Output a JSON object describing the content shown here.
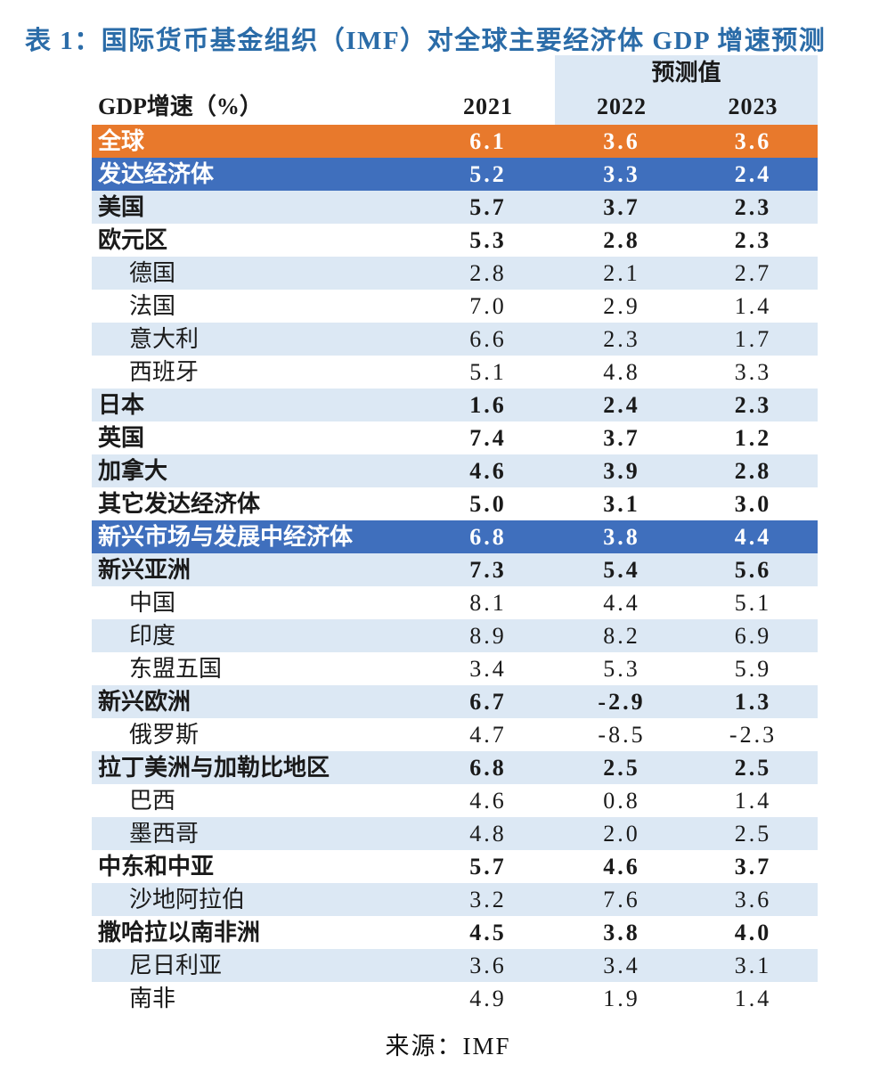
{
  "title": "表 1：国际货币基金组织（IMF）对全球主要经济体 GDP 增速预测",
  "source": "来源：IMF",
  "palette": {
    "title_blue": "#2B6CA8",
    "orange_row": "#E8792C",
    "dark_blue_row": "#3F6FBD",
    "light_blue_row": "#DCE8F4",
    "white_row": "#FFFFFF",
    "text_on_color": "#FFFFFF",
    "text_dark": "#1A1A1A"
  },
  "table": {
    "header": {
      "forecast_label": "预测值",
      "col_label": "GDP增速（%）",
      "years": [
        "2021",
        "2022",
        "2023"
      ]
    },
    "rows": [
      {
        "label": "全球",
        "values": [
          "6.1",
          "3.6",
          "3.6"
        ],
        "bg": "orange",
        "bold": true,
        "indent": false
      },
      {
        "label": "发达经济体",
        "values": [
          "5.2",
          "3.3",
          "2.4"
        ],
        "bg": "blue",
        "bold": true,
        "indent": false
      },
      {
        "label": "美国",
        "values": [
          "5.7",
          "3.7",
          "2.3"
        ],
        "bg": "light",
        "bold": true,
        "indent": false
      },
      {
        "label": "欧元区",
        "values": [
          "5.3",
          "2.8",
          "2.3"
        ],
        "bg": "white",
        "bold": true,
        "indent": false
      },
      {
        "label": "德国",
        "values": [
          "2.8",
          "2.1",
          "2.7"
        ],
        "bg": "light",
        "bold": false,
        "indent": true
      },
      {
        "label": "法国",
        "values": [
          "7.0",
          "2.9",
          "1.4"
        ],
        "bg": "white",
        "bold": false,
        "indent": true
      },
      {
        "label": "意大利",
        "values": [
          "6.6",
          "2.3",
          "1.7"
        ],
        "bg": "light",
        "bold": false,
        "indent": true
      },
      {
        "label": "西班牙",
        "values": [
          "5.1",
          "4.8",
          "3.3"
        ],
        "bg": "white",
        "bold": false,
        "indent": true
      },
      {
        "label": "日本",
        "values": [
          "1.6",
          "2.4",
          "2.3"
        ],
        "bg": "light",
        "bold": true,
        "indent": false
      },
      {
        "label": "英国",
        "values": [
          "7.4",
          "3.7",
          "1.2"
        ],
        "bg": "white",
        "bold": true,
        "indent": false
      },
      {
        "label": "加拿大",
        "values": [
          "4.6",
          "3.9",
          "2.8"
        ],
        "bg": "light",
        "bold": true,
        "indent": false
      },
      {
        "label": "其它发达经济体",
        "values": [
          "5.0",
          "3.1",
          "3.0"
        ],
        "bg": "white",
        "bold": true,
        "indent": false
      },
      {
        "label": "新兴市场与发展中经济体",
        "values": [
          "6.8",
          "3.8",
          "4.4"
        ],
        "bg": "blue",
        "bold": true,
        "indent": false
      },
      {
        "label": "新兴亚洲",
        "values": [
          "7.3",
          "5.4",
          "5.6"
        ],
        "bg": "light",
        "bold": true,
        "indent": false
      },
      {
        "label": "中国",
        "values": [
          "8.1",
          "4.4",
          "5.1"
        ],
        "bg": "white",
        "bold": false,
        "indent": true
      },
      {
        "label": "印度",
        "values": [
          "8.9",
          "8.2",
          "6.9"
        ],
        "bg": "light",
        "bold": false,
        "indent": true
      },
      {
        "label": "东盟五国",
        "values": [
          "3.4",
          "5.3",
          "5.9"
        ],
        "bg": "white",
        "bold": false,
        "indent": true
      },
      {
        "label": "新兴欧洲",
        "values": [
          "6.7",
          "-2.9",
          "1.3"
        ],
        "bg": "light",
        "bold": true,
        "indent": false
      },
      {
        "label": "俄罗斯",
        "values": [
          "4.7",
          "-8.5",
          "-2.3"
        ],
        "bg": "white",
        "bold": false,
        "indent": true
      },
      {
        "label": "拉丁美洲与加勒比地区",
        "values": [
          "6.8",
          "2.5",
          "2.5"
        ],
        "bg": "light",
        "bold": true,
        "indent": false
      },
      {
        "label": "巴西",
        "values": [
          "4.6",
          "0.8",
          "1.4"
        ],
        "bg": "white",
        "bold": false,
        "indent": true
      },
      {
        "label": "墨西哥",
        "values": [
          "4.8",
          "2.0",
          "2.5"
        ],
        "bg": "light",
        "bold": false,
        "indent": true
      },
      {
        "label": "中东和中亚",
        "values": [
          "5.7",
          "4.6",
          "3.7"
        ],
        "bg": "white",
        "bold": true,
        "indent": false
      },
      {
        "label": "沙地阿拉伯",
        "values": [
          "3.2",
          "7.6",
          "3.6"
        ],
        "bg": "light",
        "bold": false,
        "indent": true
      },
      {
        "label": "撒哈拉以南非洲",
        "values": [
          "4.5",
          "3.8",
          "4.0"
        ],
        "bg": "white",
        "bold": true,
        "indent": false
      },
      {
        "label": "尼日利亚",
        "values": [
          "3.6",
          "3.4",
          "3.1"
        ],
        "bg": "light",
        "bold": false,
        "indent": true
      },
      {
        "label": "南非",
        "values": [
          "4.9",
          "1.9",
          "1.4"
        ],
        "bg": "white",
        "bold": false,
        "indent": true
      }
    ]
  }
}
